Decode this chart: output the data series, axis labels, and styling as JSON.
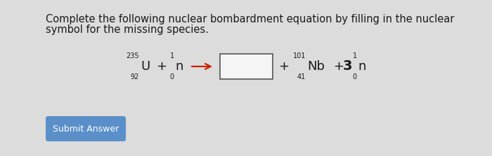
{
  "background_color": "#dcdcdc",
  "title_line1": "Complete the following nuclear bombardment equation by filling in the nuclear",
  "title_line2": "symbol for the missing species.",
  "title_fontsize": 10.5,
  "title_color": "#1a1a1a",
  "equation": {
    "U_mass": "235",
    "U_atomic": "92",
    "U_symbol": "U",
    "n1_mass": "1",
    "n1_atomic": "0",
    "n1_symbol": "n",
    "Nb_mass": "101",
    "Nb_atomic": "41",
    "Nb_symbol": "Nb",
    "n3_coeff": "3",
    "n3_mass": "1",
    "n3_atomic": "0",
    "n3_symbol": "n"
  },
  "box_color": "#f5f5f5",
  "box_edge_color": "#555555",
  "arrow_color": "#cc2200",
  "submit_bg": "#5b8fc9",
  "submit_text": "Submit Answer",
  "submit_text_color": "#ffffff",
  "eq_fontsize": 13,
  "sup_fontsize": 7,
  "sub_fontsize": 7,
  "coeff_fontsize": 14
}
